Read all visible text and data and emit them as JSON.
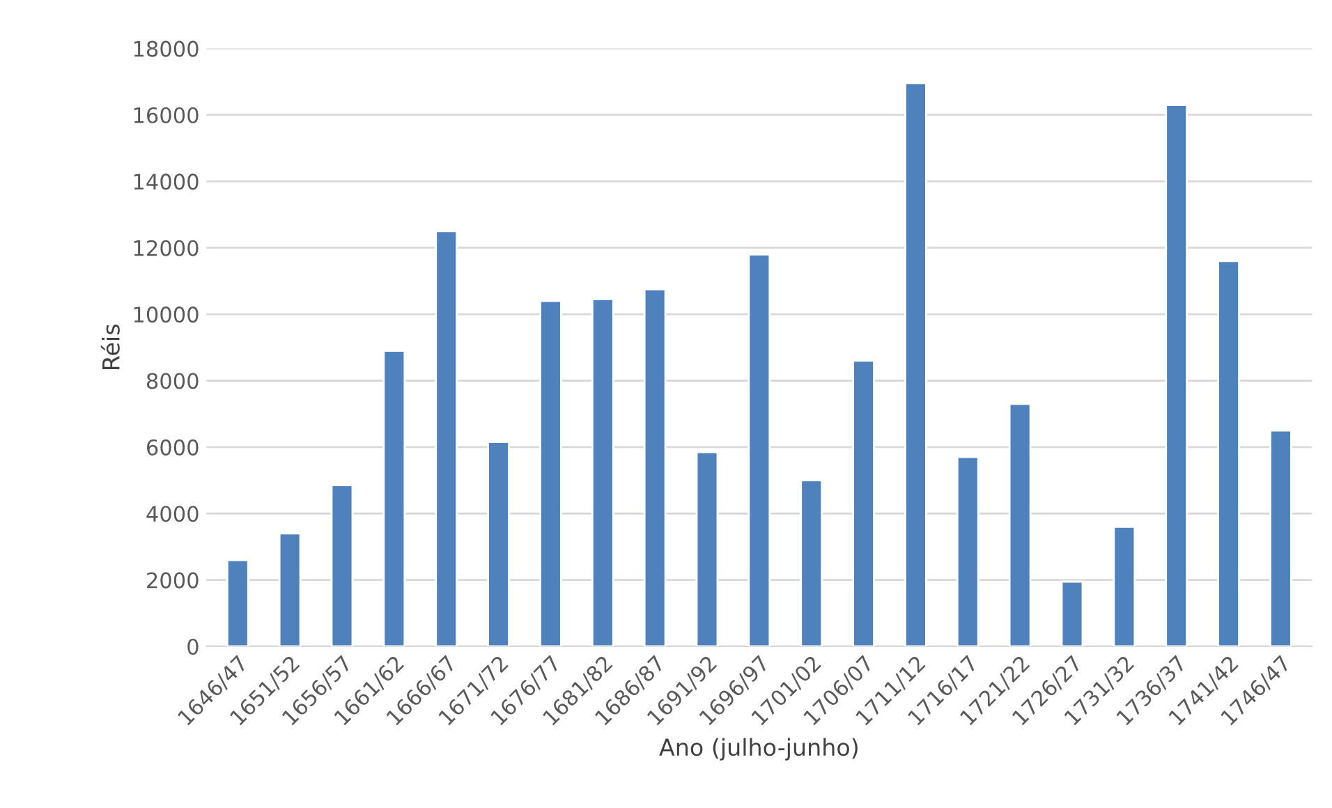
{
  "chart_data": {
    "type": "bar",
    "xlabel": "Ano (julho-junho)",
    "ylabel": "Réis",
    "categories": [
      "1646/47",
      "1651/52",
      "1656/57",
      "1661/62",
      "1666/67",
      "1671/72",
      "1676/77",
      "1681/82",
      "1686/87",
      "1691/92",
      "1696/97",
      "1701/02",
      "1706/07",
      "1711/12",
      "1716/17",
      "1721/22",
      "1726/27",
      "1731/32",
      "1736/37",
      "1741/42",
      "1746/47"
    ],
    "values": [
      2600,
      3400,
      4850,
      8900,
      12500,
      6150,
      10400,
      10450,
      10750,
      5850,
      11800,
      5000,
      8600,
      16950,
      5700,
      7300,
      1950,
      3600,
      16300,
      11600,
      6500
    ],
    "color": "#4f81bd",
    "ylim": [
      0,
      18000
    ],
    "yticks": [
      0,
      2000,
      4000,
      6000,
      8000,
      10000,
      12000,
      14000,
      16000,
      18000
    ],
    "grid": "y"
  }
}
